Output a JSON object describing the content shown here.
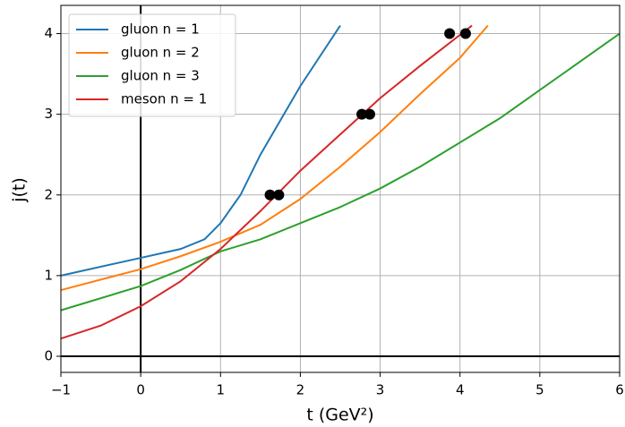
{
  "chart_data": {
    "type": "line",
    "x_label": "t (GeV²)",
    "y_label": "j(t)",
    "xlim": [
      -1,
      6
    ],
    "ylim": [
      -0.2,
      4.35
    ],
    "xticks": [
      {
        "value": -1,
        "label": "−1"
      },
      0,
      1,
      2,
      3,
      4,
      5,
      6
    ],
    "yticks": [
      0,
      1,
      2,
      3,
      4
    ],
    "grid": true,
    "legend": "upper-left",
    "series": [
      {
        "name": "gluon n = 1",
        "color": "#1f77b4",
        "x": [
          -1,
          0,
          0.5,
          0.8,
          1,
          1.25,
          1.5,
          2,
          2.5
        ],
        "values": [
          1.0,
          1.22,
          1.33,
          1.45,
          1.65,
          2.0,
          2.5,
          3.35,
          4.1
        ]
      },
      {
        "name": "gluon n = 2",
        "color": "#ff7f0e",
        "x": [
          -1,
          0,
          0.5,
          1,
          1.5,
          2,
          2.5,
          3,
          3.5,
          4,
          4.35
        ],
        "values": [
          0.82,
          1.08,
          1.24,
          1.42,
          1.63,
          1.95,
          2.35,
          2.78,
          3.25,
          3.7,
          4.1
        ]
      },
      {
        "name": "gluon n = 3",
        "color": "#2ca02c",
        "x": [
          -1,
          0,
          0.5,
          1,
          1.5,
          2,
          2.5,
          3,
          3.5,
          4,
          4.5,
          5,
          5.5,
          6
        ],
        "values": [
          0.57,
          0.87,
          1.07,
          1.3,
          1.45,
          1.65,
          1.85,
          2.08,
          2.35,
          2.65,
          2.95,
          3.3,
          3.65,
          4.0
        ]
      },
      {
        "name": "meson n = 1",
        "color": "#d62728",
        "x": [
          -1,
          -0.5,
          0,
          0.5,
          1,
          1.5,
          2,
          2.5,
          3,
          3.5,
          4.15
        ],
        "values": [
          0.22,
          0.38,
          0.62,
          0.93,
          1.33,
          1.8,
          2.3,
          2.75,
          3.2,
          3.6,
          4.1
        ]
      }
    ],
    "points": {
      "color": "#000000",
      "x": [
        1.62,
        1.73,
        2.77,
        2.87,
        3.87,
        4.07
      ],
      "values": [
        2,
        2,
        3,
        3,
        4,
        4
      ]
    }
  }
}
